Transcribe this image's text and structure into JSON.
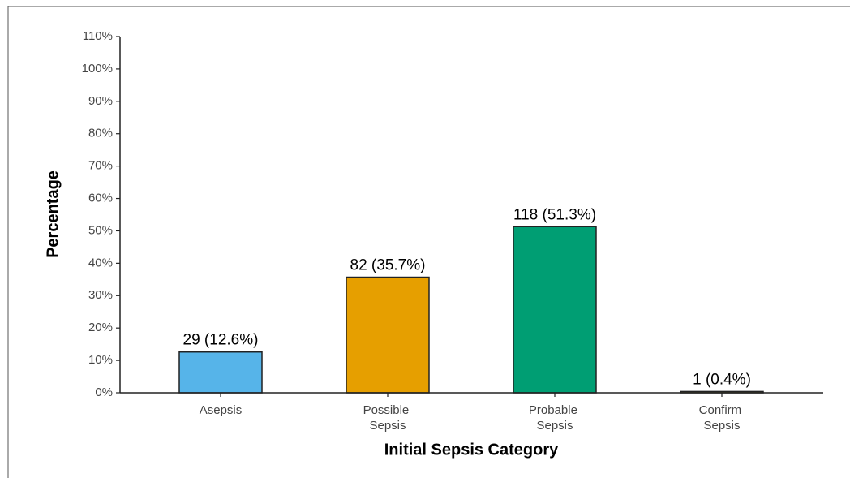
{
  "chart_data": {
    "type": "bar",
    "x_label": "Initial Sepsis Category",
    "y_label": "Percentage",
    "categories": [
      "Asepsis",
      "Possible Sepsis",
      "Probable Sepsis",
      "Confirm Sepsis"
    ],
    "values": [
      12.6,
      35.7,
      51.3,
      0.4
    ],
    "value_labels": [
      "29 (12.6%)",
      "82 (35.7%)",
      "118 (51.3%)",
      "1 (0.4%)"
    ],
    "colors": [
      "#56B4E9",
      "#E69F00",
      "#009E73",
      "#F0E442"
    ],
    "ylim": [
      0,
      110
    ],
    "yticks": [
      {
        "value": 0,
        "label": "0%"
      },
      {
        "value": 10,
        "label": "10%"
      },
      {
        "value": 20,
        "label": "20%"
      },
      {
        "value": 30,
        "label": "30%"
      },
      {
        "value": 40,
        "label": "40%"
      },
      {
        "value": 50,
        "label": "50%"
      },
      {
        "value": 60,
        "label": "60%"
      },
      {
        "value": 70,
        "label": "70%"
      },
      {
        "value": 80,
        "label": "80%"
      },
      {
        "value": 90,
        "label": "90%"
      },
      {
        "value": 100,
        "label": "100%"
      },
      {
        "value": 110,
        "label": "110%"
      }
    ]
  }
}
